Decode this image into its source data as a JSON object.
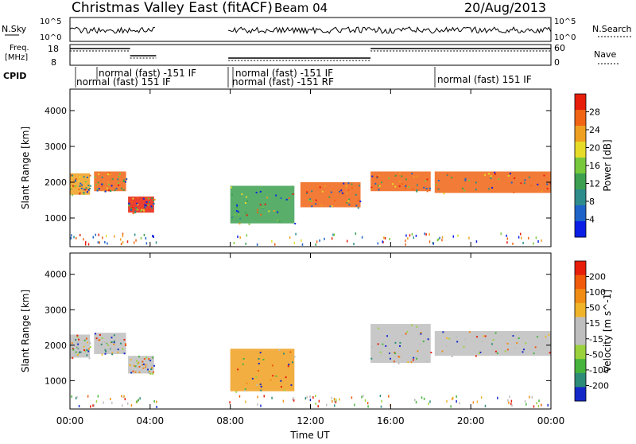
{
  "header": {
    "title": "Christmas Valley East (fitACF)",
    "beam": "Beam 04",
    "date": "20/Aug/2013"
  },
  "strip_labels": {
    "nsky": "N.Sky",
    "nsky_ticks": [
      "10^5",
      "10^0"
    ],
    "nsearch": "N.Search",
    "nsearch_ticks": [
      "10^5",
      "10^0"
    ],
    "freq_line1": "Freq.",
    "freq_line2": "[MHz]",
    "freq_ticks": [
      "18",
      "8"
    ],
    "nave": "Nave",
    "nave_ticks": [
      "60",
      "0"
    ],
    "cpid": "CPID"
  },
  "cpid_labels": [
    "normal (fast) -151 IF",
    "normal (fast) 151 IF",
    "normal (fast) -151 IF",
    "normal (fast) -151 RF",
    "normal (fast) 151 IF"
  ],
  "chart_data": [
    {
      "type": "heatmap",
      "name": "power",
      "ylabel": "Slant Range [km]",
      "yticks": [
        "1000",
        "2000",
        "3000",
        "4000"
      ],
      "ylim": [
        200,
        4600
      ],
      "xticks": [
        "00:00",
        "04:00",
        "08:00",
        "12:00",
        "16:00",
        "20:00",
        "00:00"
      ],
      "colorbar_label": "Power [dB]",
      "colorbar_ticks": [
        "4",
        "8",
        "12",
        "16",
        "20",
        "24",
        "28"
      ],
      "colorbar_colors": [
        "#0a1ee6",
        "#1e64c8",
        "#2e8c8c",
        "#3ca050",
        "#78c83c",
        "#e6dc28",
        "#f0a020",
        "#f06414",
        "#e61e0a"
      ],
      "bands": [
        {
          "t0": 0.0,
          "t1": 1.0,
          "r0": 1650,
          "r1": 2250,
          "color": "#f0a020"
        },
        {
          "t0": 1.2,
          "t1": 2.8,
          "r0": 1750,
          "r1": 2300,
          "color": "#f06414"
        },
        {
          "t0": 2.9,
          "t1": 4.2,
          "r0": 1150,
          "r1": 1600,
          "color": "#e61e0a"
        },
        {
          "t0": 8.0,
          "t1": 11.2,
          "r0": 850,
          "r1": 1900,
          "color": "#3ca050"
        },
        {
          "t0": 11.5,
          "t1": 14.5,
          "r0": 1300,
          "r1": 2000,
          "color": "#f06414"
        },
        {
          "t0": 15.0,
          "t1": 18.0,
          "r0": 1750,
          "r1": 2300,
          "color": "#f06414"
        },
        {
          "t0": 18.2,
          "t1": 24.0,
          "r0": 1700,
          "r1": 2300,
          "color": "#f06414"
        }
      ]
    },
    {
      "type": "heatmap",
      "name": "velocity",
      "ylabel": "Slant Range [km]",
      "yticks": [
        "1000",
        "2000",
        "3000",
        "4000"
      ],
      "ylim": [
        200,
        4600
      ],
      "xticks": [
        "00:00",
        "04:00",
        "08:00",
        "12:00",
        "16:00",
        "20:00",
        "00:00"
      ],
      "xlabel": "Time UT",
      "colorbar_label": "Velocity [m s^-1]",
      "colorbar_ticks": [
        "200",
        "100",
        "50",
        "15",
        "-15",
        "-50",
        "-100",
        "-200"
      ],
      "colorbar_colors": [
        "#1428c8",
        "#2d8c78",
        "#46b43c",
        "#9ad23c",
        "#bebebe",
        "#bebebe",
        "#f0b428",
        "#f08c14",
        "#f05a0a",
        "#e61e0a"
      ],
      "bands": [
        {
          "t0": 0.0,
          "t1": 1.0,
          "r0": 1650,
          "r1": 2300,
          "color": "#bebebe"
        },
        {
          "t0": 1.2,
          "t1": 2.8,
          "r0": 1750,
          "r1": 2350,
          "color": "#bebebe"
        },
        {
          "t0": 2.9,
          "t1": 4.2,
          "r0": 1200,
          "r1": 1700,
          "color": "#bebebe"
        },
        {
          "t0": 8.0,
          "t1": 11.2,
          "r0": 700,
          "r1": 1900,
          "color": "#f0a020"
        },
        {
          "t0": 15.0,
          "t1": 18.0,
          "r0": 1500,
          "r1": 2600,
          "color": "#bebebe"
        },
        {
          "t0": 18.2,
          "t1": 24.0,
          "r0": 1700,
          "r1": 2400,
          "color": "#bebebe"
        }
      ]
    }
  ]
}
